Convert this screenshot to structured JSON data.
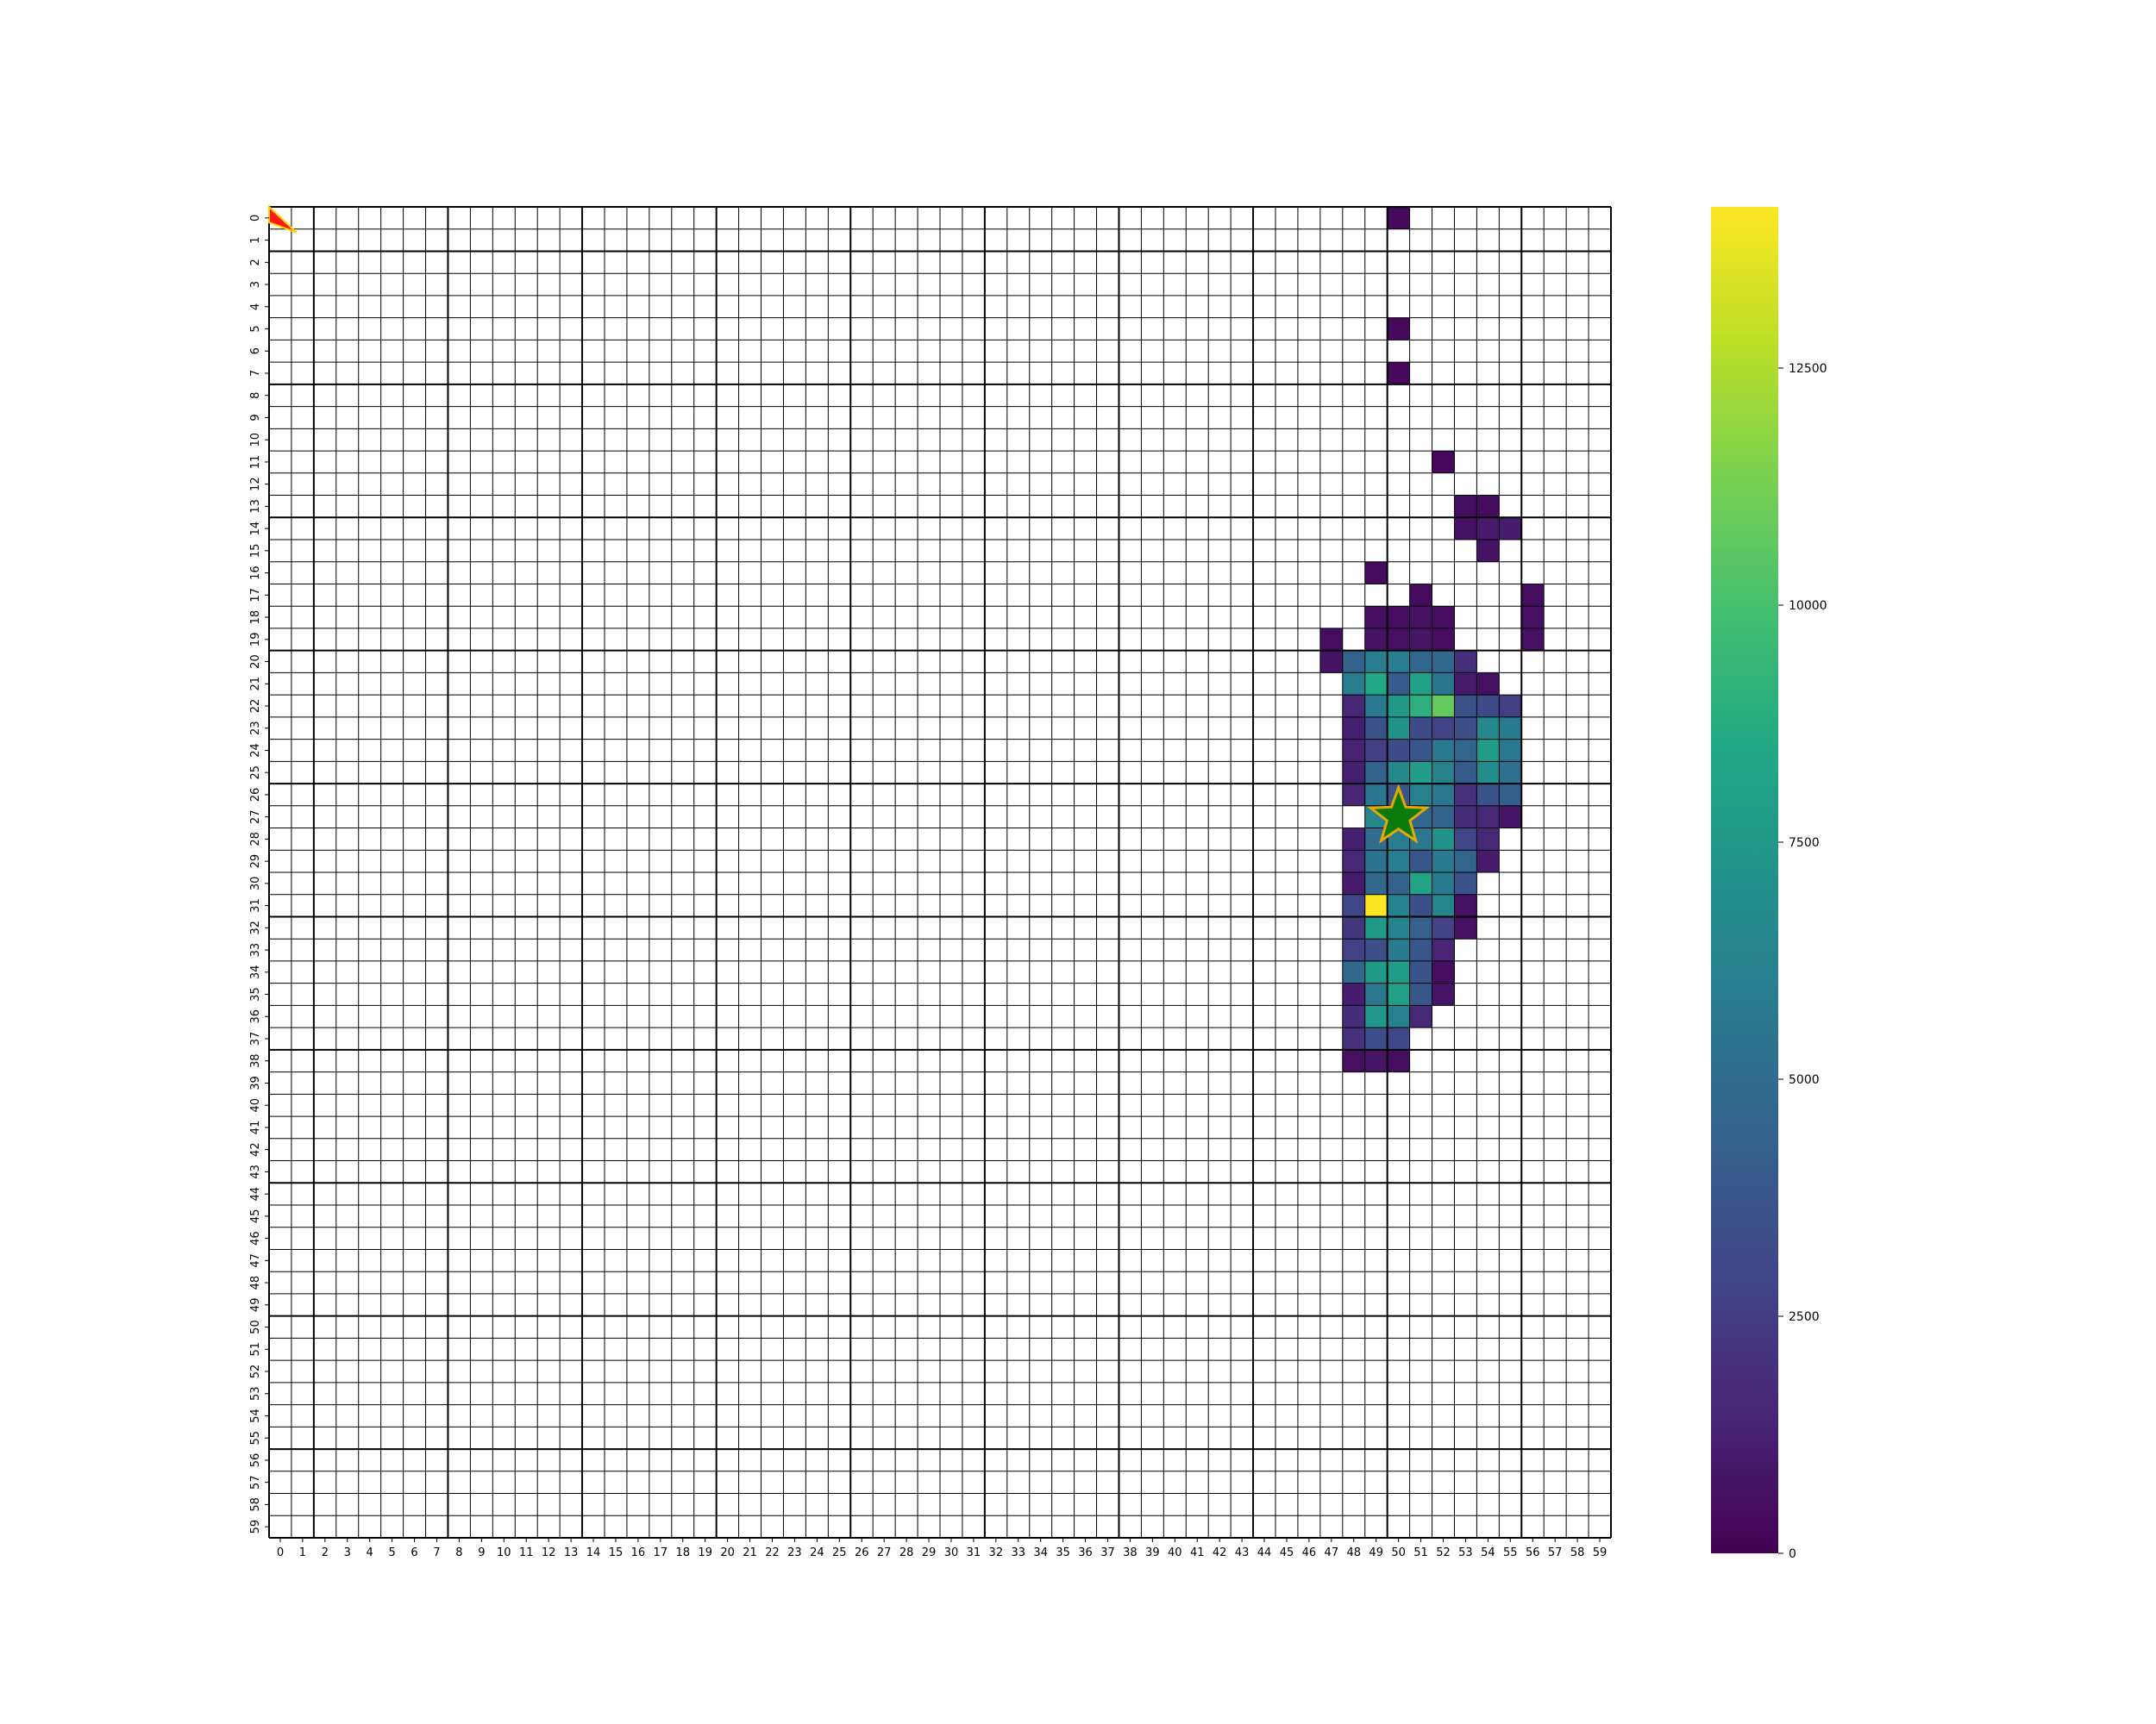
{
  "chart_data": {
    "type": "heatmap",
    "title": "",
    "xlabel": "",
    "ylabel": "",
    "grid_size": [
      60,
      60
    ],
    "x_ticks": [
      "0",
      "1",
      "2",
      "3",
      "4",
      "5",
      "6",
      "7",
      "8",
      "9",
      "10",
      "11",
      "12",
      "13",
      "14",
      "15",
      "16",
      "17",
      "18",
      "19",
      "20",
      "21",
      "22",
      "23",
      "24",
      "25",
      "26",
      "27",
      "28",
      "29",
      "30",
      "31",
      "32",
      "33",
      "34",
      "35",
      "36",
      "37",
      "38",
      "39",
      "40",
      "41",
      "42",
      "43",
      "44",
      "45",
      "46",
      "47",
      "48",
      "49",
      "50",
      "51",
      "52",
      "53",
      "54",
      "55",
      "56",
      "57",
      "58",
      "59"
    ],
    "y_ticks": [
      "0",
      "1",
      "2",
      "3",
      "4",
      "5",
      "6",
      "7",
      "8",
      "9",
      "10",
      "11",
      "12",
      "13",
      "14",
      "15",
      "16",
      "17",
      "18",
      "19",
      "20",
      "21",
      "22",
      "23",
      "24",
      "25",
      "26",
      "27",
      "28",
      "29",
      "30",
      "31",
      "32",
      "33",
      "34",
      "35",
      "36",
      "37",
      "38",
      "39",
      "40",
      "41",
      "42",
      "43",
      "44",
      "45",
      "46",
      "47",
      "48",
      "49",
      "50",
      "51",
      "52",
      "53",
      "54",
      "55",
      "56",
      "57",
      "58",
      "59"
    ],
    "colorbar": {
      "colormap": "viridis",
      "range": [
        0,
        14200
      ],
      "ticks": [
        0,
        2500,
        5000,
        7500,
        10000,
        12500
      ],
      "tick_labels": [
        "0",
        "2500",
        "5000",
        "7500",
        "10000",
        "12500"
      ]
    },
    "cells": [
      {
        "row": 0,
        "col": 50,
        "value": 300
      },
      {
        "row": 5,
        "col": 50,
        "value": 300
      },
      {
        "row": 7,
        "col": 50,
        "value": 300
      },
      {
        "row": 11,
        "col": 52,
        "value": 300
      },
      {
        "row": 13,
        "col": 53,
        "value": 500
      },
      {
        "row": 13,
        "col": 54,
        "value": 400
      },
      {
        "row": 14,
        "col": 53,
        "value": 700
      },
      {
        "row": 14,
        "col": 54,
        "value": 1000
      },
      {
        "row": 14,
        "col": 55,
        "value": 1100
      },
      {
        "row": 15,
        "col": 54,
        "value": 700
      },
      {
        "row": 16,
        "col": 49,
        "value": 400
      },
      {
        "row": 17,
        "col": 51,
        "value": 400
      },
      {
        "row": 17,
        "col": 56,
        "value": 500
      },
      {
        "row": 18,
        "col": 49,
        "value": 500
      },
      {
        "row": 18,
        "col": 50,
        "value": 500
      },
      {
        "row": 18,
        "col": 51,
        "value": 600
      },
      {
        "row": 18,
        "col": 52,
        "value": 500
      },
      {
        "row": 18,
        "col": 56,
        "value": 600
      },
      {
        "row": 19,
        "col": 47,
        "value": 500
      },
      {
        "row": 19,
        "col": 49,
        "value": 700
      },
      {
        "row": 19,
        "col": 50,
        "value": 600
      },
      {
        "row": 19,
        "col": 51,
        "value": 800
      },
      {
        "row": 19,
        "col": 52,
        "value": 500
      },
      {
        "row": 19,
        "col": 56,
        "value": 600
      },
      {
        "row": 20,
        "col": 47,
        "value": 700
      },
      {
        "row": 20,
        "col": 48,
        "value": 4500
      },
      {
        "row": 20,
        "col": 49,
        "value": 6000
      },
      {
        "row": 20,
        "col": 50,
        "value": 6000
      },
      {
        "row": 20,
        "col": 51,
        "value": 4700
      },
      {
        "row": 20,
        "col": 52,
        "value": 4700
      },
      {
        "row": 20,
        "col": 53,
        "value": 1900
      },
      {
        "row": 21,
        "col": 48,
        "value": 6000
      },
      {
        "row": 21,
        "col": 49,
        "value": 8500
      },
      {
        "row": 21,
        "col": 50,
        "value": 4000
      },
      {
        "row": 21,
        "col": 51,
        "value": 8000
      },
      {
        "row": 21,
        "col": 52,
        "value": 5500
      },
      {
        "row": 21,
        "col": 53,
        "value": 1000
      },
      {
        "row": 21,
        "col": 54,
        "value": 600
      },
      {
        "row": 22,
        "col": 48,
        "value": 1500
      },
      {
        "row": 22,
        "col": 49,
        "value": 5800
      },
      {
        "row": 22,
        "col": 50,
        "value": 7500
      },
      {
        "row": 22,
        "col": 51,
        "value": 9000
      },
      {
        "row": 22,
        "col": 52,
        "value": 10800
      },
      {
        "row": 22,
        "col": 53,
        "value": 3500
      },
      {
        "row": 22,
        "col": 54,
        "value": 3200
      },
      {
        "row": 22,
        "col": 55,
        "value": 2600
      },
      {
        "row": 23,
        "col": 48,
        "value": 1200
      },
      {
        "row": 23,
        "col": 49,
        "value": 3500
      },
      {
        "row": 23,
        "col": 50,
        "value": 7200
      },
      {
        "row": 23,
        "col": 51,
        "value": 3200
      },
      {
        "row": 23,
        "col": 52,
        "value": 2800
      },
      {
        "row": 23,
        "col": 53,
        "value": 3400
      },
      {
        "row": 23,
        "col": 54,
        "value": 6600
      },
      {
        "row": 23,
        "col": 55,
        "value": 5800
      },
      {
        "row": 24,
        "col": 48,
        "value": 1300
      },
      {
        "row": 24,
        "col": 49,
        "value": 2600
      },
      {
        "row": 24,
        "col": 50,
        "value": 3200
      },
      {
        "row": 24,
        "col": 51,
        "value": 3800
      },
      {
        "row": 24,
        "col": 52,
        "value": 5800
      },
      {
        "row": 24,
        "col": 53,
        "value": 4600
      },
      {
        "row": 24,
        "col": 54,
        "value": 7800
      },
      {
        "row": 24,
        "col": 55,
        "value": 5700
      },
      {
        "row": 25,
        "col": 48,
        "value": 1200
      },
      {
        "row": 25,
        "col": 49,
        "value": 4500
      },
      {
        "row": 25,
        "col": 50,
        "value": 6700
      },
      {
        "row": 25,
        "col": 51,
        "value": 7800
      },
      {
        "row": 25,
        "col": 52,
        "value": 6200
      },
      {
        "row": 25,
        "col": 53,
        "value": 4000
      },
      {
        "row": 25,
        "col": 54,
        "value": 6800
      },
      {
        "row": 25,
        "col": 55,
        "value": 5200
      },
      {
        "row": 26,
        "col": 48,
        "value": 1500
      },
      {
        "row": 26,
        "col": 49,
        "value": 5500
      },
      {
        "row": 26,
        "col": 50,
        "value": 3800
      },
      {
        "row": 26,
        "col": 51,
        "value": 6200
      },
      {
        "row": 26,
        "col": 52,
        "value": 5600
      },
      {
        "row": 26,
        "col": 53,
        "value": 2000
      },
      {
        "row": 26,
        "col": 54,
        "value": 3500
      },
      {
        "row": 26,
        "col": 55,
        "value": 4200
      },
      {
        "row": 27,
        "col": 49,
        "value": 6500
      },
      {
        "row": 27,
        "col": 50,
        "value": 7000
      },
      {
        "row": 27,
        "col": 51,
        "value": 4700
      },
      {
        "row": 27,
        "col": 52,
        "value": 4500
      },
      {
        "row": 27,
        "col": 53,
        "value": 1800
      },
      {
        "row": 27,
        "col": 54,
        "value": 1600
      },
      {
        "row": 27,
        "col": 55,
        "value": 800
      },
      {
        "row": 28,
        "col": 48,
        "value": 1200
      },
      {
        "row": 28,
        "col": 49,
        "value": 5000
      },
      {
        "row": 28,
        "col": 50,
        "value": 5900
      },
      {
        "row": 28,
        "col": 51,
        "value": 5700
      },
      {
        "row": 28,
        "col": 52,
        "value": 7200
      },
      {
        "row": 28,
        "col": 53,
        "value": 3000
      },
      {
        "row": 28,
        "col": 54,
        "value": 1600
      },
      {
        "row": 29,
        "col": 48,
        "value": 1600
      },
      {
        "row": 29,
        "col": 49,
        "value": 5400
      },
      {
        "row": 29,
        "col": 50,
        "value": 6000
      },
      {
        "row": 29,
        "col": 51,
        "value": 3800
      },
      {
        "row": 29,
        "col": 52,
        "value": 5800
      },
      {
        "row": 29,
        "col": 53,
        "value": 4600
      },
      {
        "row": 29,
        "col": 54,
        "value": 1000
      },
      {
        "row": 30,
        "col": 48,
        "value": 1000
      },
      {
        "row": 30,
        "col": 49,
        "value": 4800
      },
      {
        "row": 30,
        "col": 50,
        "value": 4500
      },
      {
        "row": 30,
        "col": 51,
        "value": 8200
      },
      {
        "row": 30,
        "col": 52,
        "value": 5800
      },
      {
        "row": 30,
        "col": 53,
        "value": 3600
      },
      {
        "row": 31,
        "col": 48,
        "value": 3000
      },
      {
        "row": 31,
        "col": 49,
        "value": 14200
      },
      {
        "row": 31,
        "col": 50,
        "value": 6300
      },
      {
        "row": 31,
        "col": 51,
        "value": 3400
      },
      {
        "row": 31,
        "col": 52,
        "value": 6400
      },
      {
        "row": 31,
        "col": 53,
        "value": 700
      },
      {
        "row": 32,
        "col": 48,
        "value": 2200
      },
      {
        "row": 32,
        "col": 49,
        "value": 7600
      },
      {
        "row": 32,
        "col": 50,
        "value": 6300
      },
      {
        "row": 32,
        "col": 51,
        "value": 4300
      },
      {
        "row": 32,
        "col": 52,
        "value": 2800
      },
      {
        "row": 32,
        "col": 53,
        "value": 600
      },
      {
        "row": 33,
        "col": 48,
        "value": 2700
      },
      {
        "row": 33,
        "col": 49,
        "value": 3400
      },
      {
        "row": 33,
        "col": 50,
        "value": 5800
      },
      {
        "row": 33,
        "col": 51,
        "value": 3800
      },
      {
        "row": 33,
        "col": 52,
        "value": 1400
      },
      {
        "row": 34,
        "col": 48,
        "value": 4800
      },
      {
        "row": 34,
        "col": 49,
        "value": 7600
      },
      {
        "row": 34,
        "col": 50,
        "value": 7800
      },
      {
        "row": 34,
        "col": 51,
        "value": 3700
      },
      {
        "row": 34,
        "col": 52,
        "value": 500
      },
      {
        "row": 35,
        "col": 48,
        "value": 1100
      },
      {
        "row": 35,
        "col": 49,
        "value": 5600
      },
      {
        "row": 35,
        "col": 50,
        "value": 8000
      },
      {
        "row": 35,
        "col": 51,
        "value": 3800
      },
      {
        "row": 35,
        "col": 52,
        "value": 800
      },
      {
        "row": 36,
        "col": 48,
        "value": 1800
      },
      {
        "row": 36,
        "col": 49,
        "value": 7400
      },
      {
        "row": 36,
        "col": 50,
        "value": 6200
      },
      {
        "row": 36,
        "col": 51,
        "value": 1600
      },
      {
        "row": 37,
        "col": 48,
        "value": 2000
      },
      {
        "row": 37,
        "col": 49,
        "value": 3300
      },
      {
        "row": 37,
        "col": 50,
        "value": 3000
      },
      {
        "row": 38,
        "col": 48,
        "value": 600
      },
      {
        "row": 38,
        "col": 49,
        "value": 800
      },
      {
        "row": 38,
        "col": 50,
        "value": 500
      }
    ],
    "markers": [
      {
        "type": "star",
        "row": 27,
        "col": 50,
        "fill": "#0a7a0a",
        "edge": "#e6a700"
      },
      {
        "type": "triangle",
        "row": 0,
        "col": 0,
        "fill": "#ff1a1a",
        "edge": "#ffd700"
      }
    ],
    "colors": {
      "grid_thin": "#000000",
      "grid_thick": "#000000",
      "empty_cell": "#ffffff"
    }
  }
}
